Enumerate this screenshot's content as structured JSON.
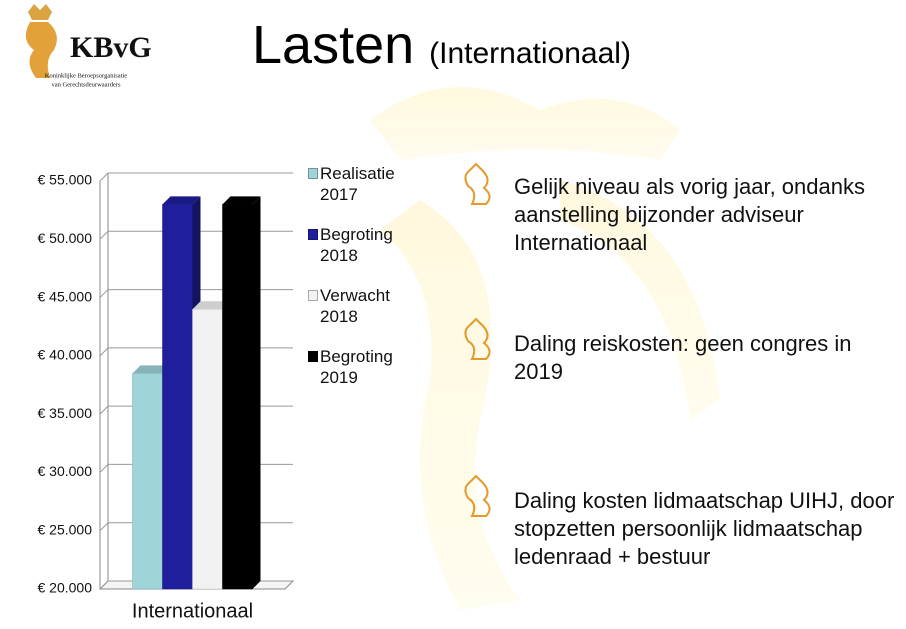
{
  "logo": {
    "mark": "KBvG",
    "line1": "Koninklijke Beroepsorganisatie",
    "line2": "van Gerechtsdeurwaarders"
  },
  "heading": {
    "title": "Lasten",
    "subtitle": "(Internationaal)"
  },
  "bullets": [
    "Gelijk niveau als vorig jaar, ondanks aanstelling bijzonder adviseur Internationaal",
    "Daling reiskosten: geen congres in 2019",
    "Daling kosten lidmaatschap UIHJ, door stopzetten persoonlijk lidmaatschap ledenraad + bestuur"
  ],
  "chart_data": {
    "type": "bar3d",
    "categories": [
      "Internationaal"
    ],
    "series": [
      {
        "name": "Realisatie 2017",
        "color": "#9fd4d8",
        "values": [
          38500
        ]
      },
      {
        "name": "Begroting 2018",
        "color": "#1f1f9e",
        "values": [
          53000
        ]
      },
      {
        "name": "Verwacht 2018",
        "color": "#f2f2f2",
        "values": [
          44000
        ]
      },
      {
        "name": "Begroting 2019",
        "color": "#000000",
        "values": [
          53000
        ]
      }
    ],
    "ylim": [
      20000,
      55000
    ],
    "yticks": [
      {
        "value": 20000,
        "label": "€ 20.000"
      },
      {
        "value": 25000,
        "label": "€ 25.000"
      },
      {
        "value": 30000,
        "label": "€ 30.000"
      },
      {
        "value": 35000,
        "label": "€ 35.000"
      },
      {
        "value": 40000,
        "label": "€ 40.000"
      },
      {
        "value": 45000,
        "label": "€ 45.000"
      },
      {
        "value": 50000,
        "label": "€ 50.000"
      },
      {
        "value": 55000,
        "label": "€ 55.000"
      }
    ],
    "grid": true,
    "legend": "right"
  }
}
